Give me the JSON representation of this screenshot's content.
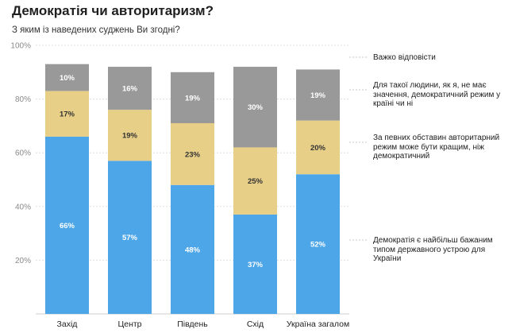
{
  "chart_data": {
    "type": "bar",
    "stacked": true,
    "title": "Демократія чи авторитаризм?",
    "subtitle": "З яким із наведених суджень Ви згодні?",
    "ylim": [
      0,
      100
    ],
    "yticks": [
      20,
      40,
      60,
      80,
      100
    ],
    "ytick_labels": [
      "20%",
      "40%",
      "60%",
      "80%",
      "100%"
    ],
    "categories": [
      "Захід",
      "Центр",
      "Південь",
      "Схід",
      "Україна загалом"
    ],
    "series": [
      {
        "name": "Демократія є найбільш бажаним типом державного устрою для України",
        "color": "#4da6e8",
        "label_color": "#ffffff",
        "values": [
          66,
          57,
          48,
          37,
          52
        ],
        "labels": [
          "66%",
          "57%",
          "48%",
          "37%",
          "52%"
        ]
      },
      {
        "name": "За певних обставин авторитарний режим може бути кращим, ніж демократичний",
        "color": "#e8cf87",
        "label_color": "#333333",
        "values": [
          17,
          19,
          23,
          25,
          20
        ],
        "labels": [
          "17%",
          "19%",
          "23%",
          "25%",
          "20%"
        ]
      },
      {
        "name": "Для такої людини, як я, не має значення, демократичний режим у країні чи ні",
        "color": "#999999",
        "label_color": "#ffffff",
        "values": [
          10,
          16,
          19,
          30,
          19
        ],
        "labels": [
          "10%",
          "16%",
          "19%",
          "30%",
          "19%"
        ]
      },
      {
        "name": "Важко відповісти",
        "color": "#e8e8e8",
        "label_color": "#333333",
        "values": [
          0,
          0,
          0,
          0,
          0
        ],
        "labels": [
          "",
          "",
          "",
          "",
          ""
        ]
      }
    ],
    "legend": [
      "Важко відповісти",
      "Для такої людини, як я, не має значення, демократичний режим у країні чи ні",
      "За певних обставин авторитарний режим може бути кращим, ніж демократичний",
      "Демократія є найбільш бажаним типом державного устрою для України"
    ],
    "legend_position": "right",
    "grid": true
  }
}
